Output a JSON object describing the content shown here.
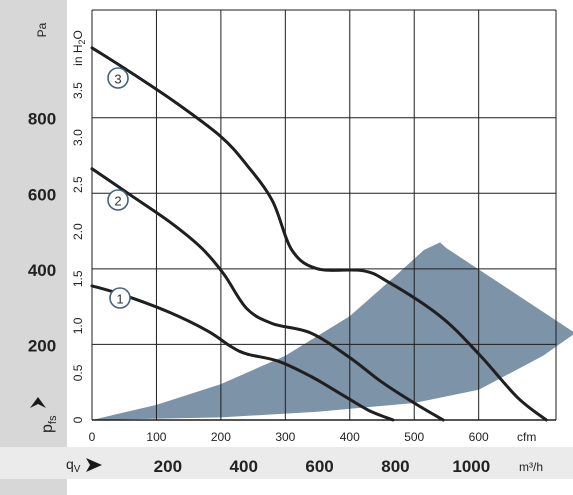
{
  "chart_data": {
    "type": "line",
    "y_left_label": "Pa",
    "y_left_ticks": [
      "200",
      "400",
      "600",
      "800"
    ],
    "y_left_label_bottom": "p",
    "y_left_label_bottom_sub": "fs",
    "y_inner_label": "in H",
    "y_inner_label_sub": "2",
    "y_inner_label_end": "O",
    "y_inner_ticks": [
      "0",
      "0.5",
      "1.0",
      "1.5",
      "2.0",
      "2.5",
      "3.0",
      "3.5"
    ],
    "x_cfm_label": "cfm",
    "x_cfm_ticks": [
      "0",
      "100",
      "200",
      "300",
      "400",
      "500",
      "600"
    ],
    "x_m3h_label": "m³/h",
    "x_m3h_prefix": "q",
    "x_m3h_prefix_sub": "V",
    "x_m3h_ticks": [
      "200",
      "400",
      "600",
      "800",
      "1000"
    ],
    "x_unit": "cfm",
    "y_unit": "Pa",
    "xlim": [
      0,
      720
    ],
    "ylim": [
      0,
      1085
    ],
    "series": [
      {
        "badge": "1",
        "points": [
          [
            0,
            355
          ],
          [
            50,
            330
          ],
          [
            120,
            285
          ],
          [
            180,
            235
          ],
          [
            215,
            195
          ],
          [
            240,
            175
          ],
          [
            290,
            155
          ],
          [
            340,
            115
          ],
          [
            390,
            65
          ],
          [
            430,
            25
          ],
          [
            467,
            0
          ]
        ]
      },
      {
        "badge": "2",
        "points": [
          [
            0,
            665
          ],
          [
            60,
            595
          ],
          [
            120,
            525
          ],
          [
            170,
            455
          ],
          [
            205,
            385
          ],
          [
            240,
            295
          ],
          [
            280,
            255
          ],
          [
            340,
            230
          ],
          [
            400,
            165
          ],
          [
            450,
            100
          ],
          [
            500,
            45
          ],
          [
            545,
            0
          ]
        ]
      },
      {
        "badge": "3",
        "points": [
          [
            0,
            985
          ],
          [
            60,
            920
          ],
          [
            130,
            840
          ],
          [
            200,
            750
          ],
          [
            240,
            675
          ],
          [
            280,
            580
          ],
          [
            310,
            450
          ],
          [
            350,
            400
          ],
          [
            420,
            395
          ],
          [
            460,
            365
          ],
          [
            540,
            275
          ],
          [
            600,
            175
          ],
          [
            660,
            60
          ],
          [
            705,
            0
          ]
        ]
      }
    ],
    "operating_area": {
      "upper_boundary": [
        [
          0,
          0
        ],
        [
          100,
          40
        ],
        [
          200,
          95
        ],
        [
          300,
          170
        ],
        [
          400,
          275
        ],
        [
          470,
          380
        ],
        [
          515,
          450
        ],
        [
          540,
          470
        ],
        [
          550,
          455
        ]
      ],
      "lower_boundary": [
        [
          0,
          0
        ],
        [
          200,
          7
        ],
        [
          350,
          22
        ],
        [
          500,
          45
        ],
        [
          600,
          80
        ],
        [
          700,
          170
        ],
        [
          750,
          230
        ]
      ],
      "outer_edge": [
        [
          550,
          455
        ],
        [
          750,
          230
        ]
      ],
      "color": "#7d93a8"
    },
    "colors": {
      "left_panel": "#d7d7d7",
      "bottom_band": "#ebebeb",
      "curve": "#1f1f1f",
      "badge_stroke": "#46637d",
      "arrow": "#1a1a1a"
    }
  }
}
